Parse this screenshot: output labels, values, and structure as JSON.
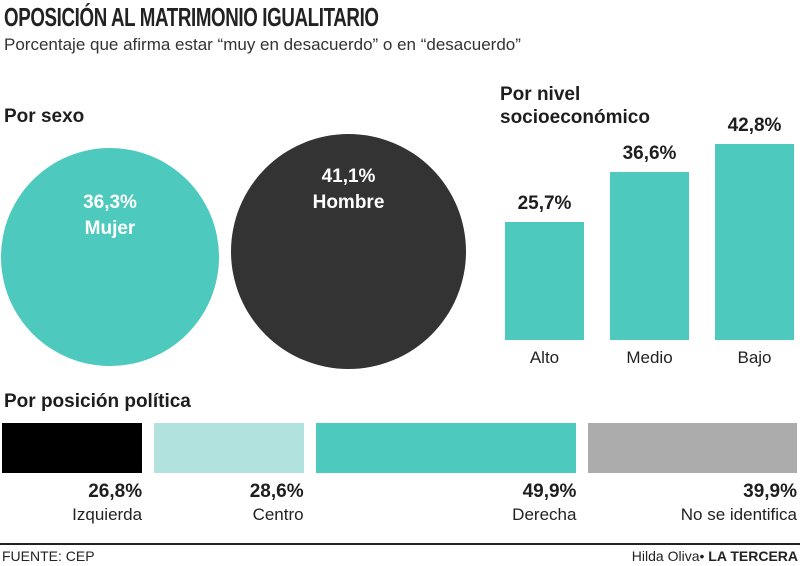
{
  "header": {
    "title": "OPOSICIÓN AL MATRIMONIO IGUALITARIO",
    "subtitle": "Porcentaje que afirma estar “muy en desacuerdo” o en “desacuerdo”"
  },
  "colors": {
    "teal": "#4dc9bd",
    "dark": "#333333",
    "black": "#000000",
    "light_teal": "#b2e2de",
    "gray": "#acacac"
  },
  "chart_data": [
    {
      "type": "bubble",
      "title": "Por sexo",
      "categories": [
        "Mujer",
        "Hombre"
      ],
      "values": [
        36.3,
        41.1
      ],
      "labels": [
        "36,3%",
        "41,1%"
      ],
      "colors": [
        "#4dc9bd",
        "#333333"
      ]
    },
    {
      "type": "bar",
      "title_lines": [
        "Por nivel",
        "socioeconómico"
      ],
      "categories": [
        "Alto",
        "Medio",
        "Bajo"
      ],
      "values": [
        25.7,
        36.6,
        42.8
      ],
      "labels": [
        "25,7%",
        "36,6%",
        "42,8%"
      ],
      "ylim": [
        0,
        42.8
      ],
      "color": "#4dc9bd"
    },
    {
      "type": "bar",
      "orientation": "horizontal",
      "title": "Por posición política",
      "categories": [
        "Izquierda",
        "Centro",
        "Derecha",
        "No se identifica"
      ],
      "values": [
        26.8,
        28.6,
        49.9,
        39.9
      ],
      "labels": [
        "26,8%",
        "28,6%",
        "49,9%",
        "39,9%"
      ],
      "colors": [
        "#000000",
        "#b2e2de",
        "#4dc9bd",
        "#acacac"
      ]
    }
  ],
  "footer": {
    "source": "FUENTE: CEP",
    "author": "Hilda Oliva",
    "separator": "•",
    "brand": "LA TERCERA"
  }
}
